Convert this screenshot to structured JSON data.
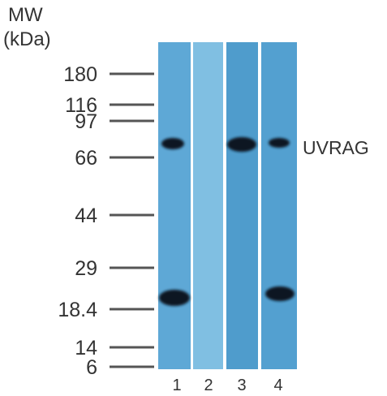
{
  "header": {
    "title": "MW",
    "unit": "(kDa)"
  },
  "markers": [
    "180",
    "116",
    "97",
    "66",
    "44",
    "29",
    "18.4",
    "14",
    "6"
  ],
  "band_label": "UVRAG",
  "lanes": [
    "1",
    "2",
    "3",
    "4"
  ]
}
